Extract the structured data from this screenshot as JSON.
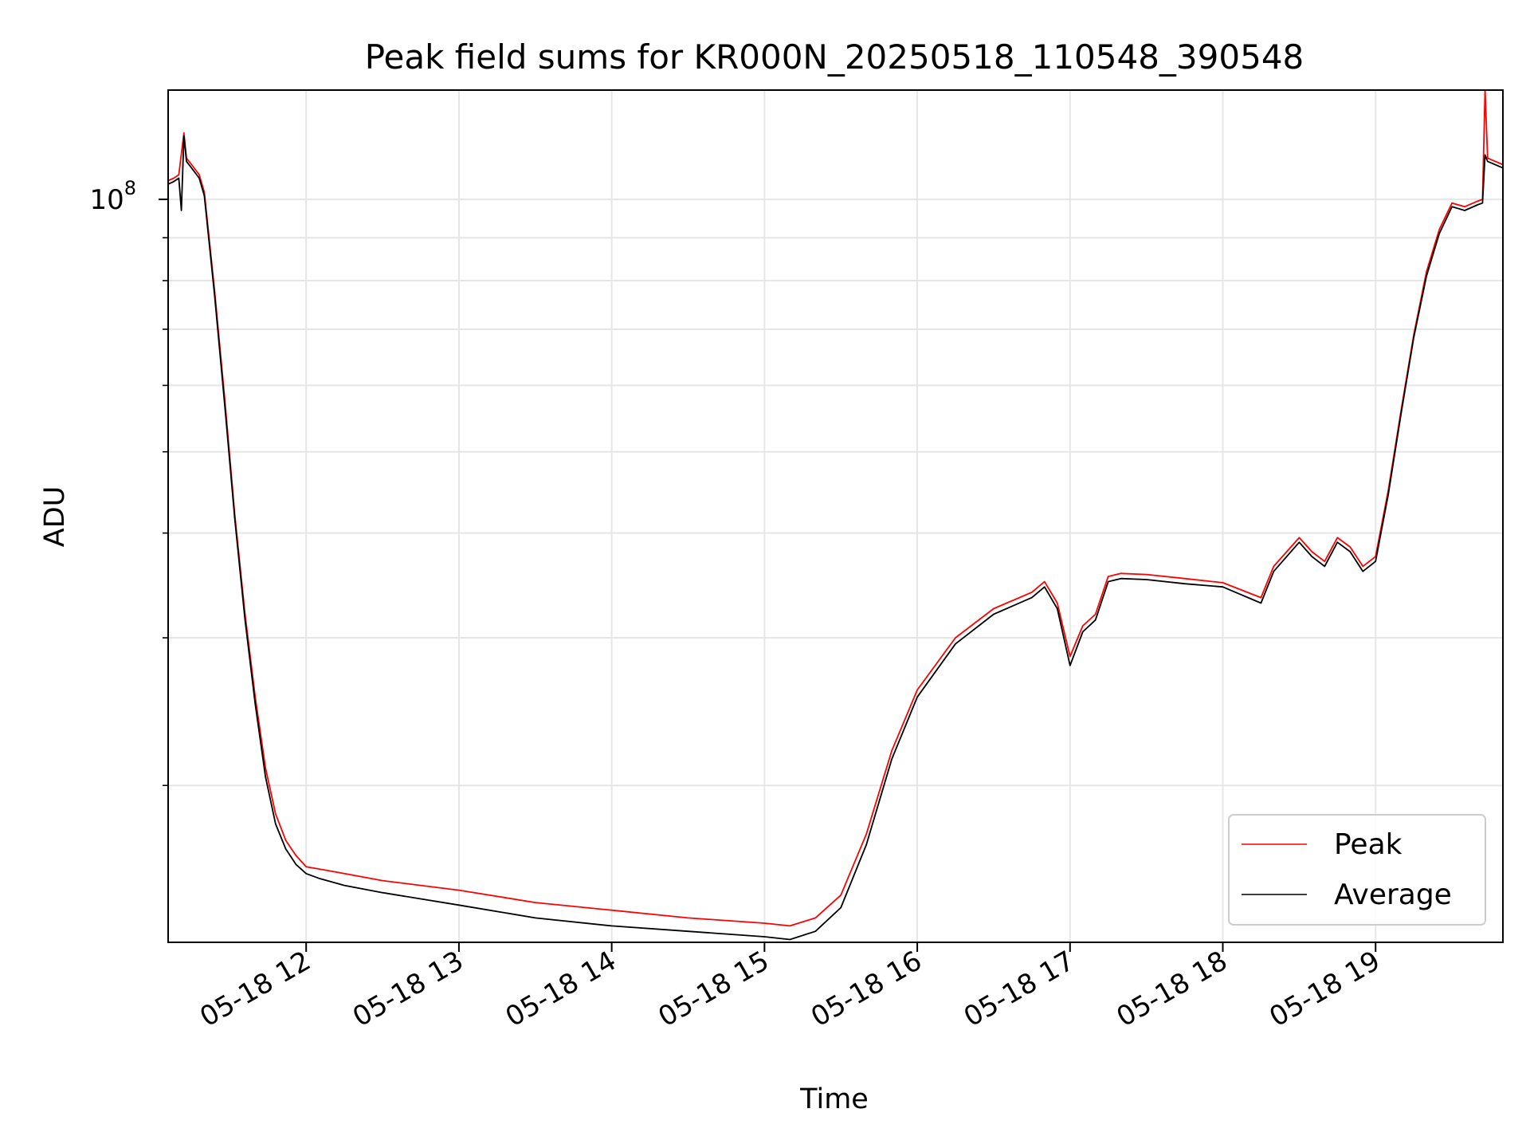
{
  "chart_data": {
    "type": "line",
    "title": "Peak field sums for KR000N_20250518_110548_390548",
    "xlabel": "Time",
    "ylabel": "ADU",
    "yscale": "log",
    "xlim": [
      "2025-05-18 11:05:48",
      "2025-05-18 19:50:00"
    ],
    "ylim": [
      13000000,
      135000000
    ],
    "x_ticks": [
      "05-18 12",
      "05-18 13",
      "05-18 14",
      "05-18 15",
      "05-18 16",
      "05-18 17",
      "05-18 18",
      "05-18 19"
    ],
    "x_tick_times": [
      "2025-05-18 12:00",
      "2025-05-18 13:00",
      "2025-05-18 14:00",
      "2025-05-18 15:00",
      "2025-05-18 16:00",
      "2025-05-18 17:00",
      "2025-05-18 18:00",
      "2025-05-18 19:00"
    ],
    "y_major_tick": {
      "value": 100000000,
      "label_base": "10",
      "label_exp": "8"
    },
    "y_minor_ticks": [
      20000000,
      30000000,
      40000000,
      50000000,
      60000000,
      70000000,
      80000000,
      90000000
    ],
    "grid": true,
    "legend_position": "lower-right",
    "series": [
      {
        "name": "Peak",
        "color": "#ff0000",
        "x": [
          "2025-05-18 11:05",
          "2025-05-18 11:08",
          "2025-05-18 11:10",
          "2025-05-18 11:12",
          "2025-05-18 11:13",
          "2025-05-18 11:15",
          "2025-05-18 11:18",
          "2025-05-18 11:20",
          "2025-05-18 11:24",
          "2025-05-18 11:28",
          "2025-05-18 11:32",
          "2025-05-18 11:36",
          "2025-05-18 11:40",
          "2025-05-18 11:44",
          "2025-05-18 11:48",
          "2025-05-18 11:52",
          "2025-05-18 11:56",
          "2025-05-18 12:00",
          "2025-05-18 12:05",
          "2025-05-18 12:15",
          "2025-05-18 12:30",
          "2025-05-18 13:00",
          "2025-05-18 13:30",
          "2025-05-18 14:00",
          "2025-05-18 14:30",
          "2025-05-18 15:00",
          "2025-05-18 15:10",
          "2025-05-18 15:20",
          "2025-05-18 15:30",
          "2025-05-18 15:40",
          "2025-05-18 15:50",
          "2025-05-18 16:00",
          "2025-05-18 16:15",
          "2025-05-18 16:30",
          "2025-05-18 16:45",
          "2025-05-18 16:50",
          "2025-05-18 16:55",
          "2025-05-18 17:00",
          "2025-05-18 17:05",
          "2025-05-18 17:10",
          "2025-05-18 17:15",
          "2025-05-18 17:20",
          "2025-05-18 17:30",
          "2025-05-18 17:45",
          "2025-05-18 18:00",
          "2025-05-18 18:15",
          "2025-05-18 18:20",
          "2025-05-18 18:30",
          "2025-05-18 18:35",
          "2025-05-18 18:40",
          "2025-05-18 18:45",
          "2025-05-18 18:50",
          "2025-05-18 18:55",
          "2025-05-18 19:00",
          "2025-05-18 19:05",
          "2025-05-18 19:10",
          "2025-05-18 19:15",
          "2025-05-18 19:20",
          "2025-05-18 19:25",
          "2025-05-18 19:30",
          "2025-05-18 19:35",
          "2025-05-18 19:40",
          "2025-05-18 19:42",
          "2025-05-18 19:43",
          "2025-05-18 19:44",
          "2025-05-18 19:50"
        ],
        "values": [
          105000000,
          106000000,
          107000000,
          120000000,
          112000000,
          110000000,
          107000000,
          102000000,
          78000000,
          58000000,
          42000000,
          32000000,
          25500000,
          21000000,
          18500000,
          17200000,
          16500000,
          16000000,
          15900000,
          15700000,
          15400000,
          15000000,
          14500000,
          14200000,
          13900000,
          13700000,
          13600000,
          13900000,
          14800000,
          17500000,
          22000000,
          26000000,
          30000000,
          32500000,
          34000000,
          35000000,
          33000000,
          28500000,
          31000000,
          32000000,
          35500000,
          35800000,
          35700000,
          35300000,
          34900000,
          33500000,
          36500000,
          39500000,
          38000000,
          37000000,
          39500000,
          38500000,
          36500000,
          37500000,
          45000000,
          56000000,
          69000000,
          82000000,
          92000000,
          99000000,
          98000000,
          99500000,
          100000000,
          135000000,
          112000000,
          110000000
        ]
      },
      {
        "name": "Average",
        "color": "#000000",
        "x": [
          "2025-05-18 11:05",
          "2025-05-18 11:08",
          "2025-05-18 11:10",
          "2025-05-18 11:11",
          "2025-05-18 11:12",
          "2025-05-18 11:13",
          "2025-05-18 11:15",
          "2025-05-18 11:18",
          "2025-05-18 11:20",
          "2025-05-18 11:24",
          "2025-05-18 11:28",
          "2025-05-18 11:32",
          "2025-05-18 11:36",
          "2025-05-18 11:40",
          "2025-05-18 11:44",
          "2025-05-18 11:48",
          "2025-05-18 11:52",
          "2025-05-18 11:56",
          "2025-05-18 12:00",
          "2025-05-18 12:05",
          "2025-05-18 12:15",
          "2025-05-18 12:30",
          "2025-05-18 13:00",
          "2025-05-18 13:30",
          "2025-05-18 14:00",
          "2025-05-18 14:30",
          "2025-05-18 15:00",
          "2025-05-18 15:10",
          "2025-05-18 15:20",
          "2025-05-18 15:30",
          "2025-05-18 15:40",
          "2025-05-18 15:50",
          "2025-05-18 16:00",
          "2025-05-18 16:15",
          "2025-05-18 16:30",
          "2025-05-18 16:45",
          "2025-05-18 16:50",
          "2025-05-18 16:55",
          "2025-05-18 17:00",
          "2025-05-18 17:05",
          "2025-05-18 17:10",
          "2025-05-18 17:15",
          "2025-05-18 17:20",
          "2025-05-18 17:30",
          "2025-05-18 17:45",
          "2025-05-18 18:00",
          "2025-05-18 18:15",
          "2025-05-18 18:20",
          "2025-05-18 18:30",
          "2025-05-18 18:35",
          "2025-05-18 18:40",
          "2025-05-18 18:45",
          "2025-05-18 18:50",
          "2025-05-18 18:55",
          "2025-05-18 19:00",
          "2025-05-18 19:05",
          "2025-05-18 19:10",
          "2025-05-18 19:15",
          "2025-05-18 19:20",
          "2025-05-18 19:25",
          "2025-05-18 19:30",
          "2025-05-18 19:35",
          "2025-05-18 19:40",
          "2025-05-18 19:42",
          "2025-05-18 19:43",
          "2025-05-18 19:44",
          "2025-05-18 19:50"
        ],
        "values": [
          104000000,
          105000000,
          106000000,
          97000000,
          119000000,
          111000000,
          109000000,
          106000000,
          101000000,
          77000000,
          57000000,
          41500000,
          31500000,
          25000000,
          20500000,
          18000000,
          16800000,
          16100000,
          15700000,
          15500000,
          15200000,
          14900000,
          14400000,
          13900000,
          13600000,
          13400000,
          13200000,
          13100000,
          13400000,
          14300000,
          17000000,
          21500000,
          25500000,
          29500000,
          32000000,
          33500000,
          34500000,
          32500000,
          27800000,
          30500000,
          31500000,
          35000000,
          35300000,
          35200000,
          34800000,
          34500000,
          33000000,
          36000000,
          39000000,
          37500000,
          36500000,
          39000000,
          38000000,
          36000000,
          37000000,
          44500000,
          55500000,
          68500000,
          81000000,
          91000000,
          98000000,
          97000000,
          98500000,
          99000000,
          113000000,
          111000000,
          109000000
        ]
      }
    ]
  }
}
